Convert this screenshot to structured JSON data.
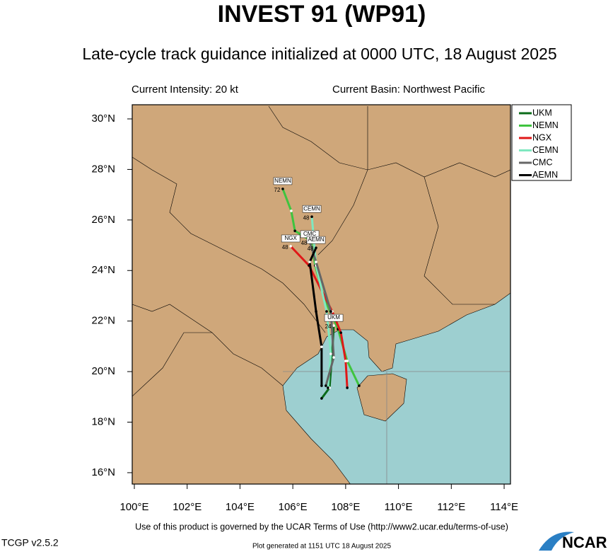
{
  "chart_data": {
    "type": "track",
    "title": "INVEST 91 (WP91)",
    "subtitle": "Late-cycle track guidance initialized at 0000 UTC, 18 August 2025",
    "intensity": "Current Intensity: 20 kt",
    "basin": "Current Basin: Northwest Pacific",
    "xlim": [
      99.92,
      114.24
    ],
    "ylim": [
      15.55,
      30.56
    ],
    "xticks": [
      {
        "value": 100,
        "label": "100°E"
      },
      {
        "value": 102,
        "label": "102°E"
      },
      {
        "value": 104,
        "label": "104°E"
      },
      {
        "value": 106,
        "label": "106°E"
      },
      {
        "value": 108,
        "label": "108°E"
      },
      {
        "value": 110,
        "label": "110°E"
      },
      {
        "value": 112,
        "label": "112°E"
      },
      {
        "value": 114,
        "label": "114°E"
      }
    ],
    "yticks": [
      {
        "value": 16,
        "label": "16°N"
      },
      {
        "value": 18,
        "label": "18°N"
      },
      {
        "value": 20,
        "label": "20°N"
      },
      {
        "value": 22,
        "label": "22°N"
      },
      {
        "value": 24,
        "label": "24°N"
      },
      {
        "value": 26,
        "label": "26°N"
      },
      {
        "value": 28,
        "label": "28°N"
      },
      {
        "value": 30,
        "label": "30°N"
      }
    ],
    "series": [
      {
        "name": "UKM",
        "color": "#0b6b1a",
        "end_label": 24,
        "x": [
          107.09,
          107.39,
          107.49,
          107.55
        ],
        "values": [
          18.94,
          19.36,
          20.7,
          21.82
        ]
      },
      {
        "name": "NEMN",
        "color": "#3fc43f",
        "end_label": 72,
        "x": [
          108.51,
          108.06,
          107.71,
          107.17,
          106.85,
          106.69,
          106.08,
          105.94,
          105.62
        ],
        "values": [
          19.44,
          20.42,
          21.68,
          22.94,
          24.2,
          25.18,
          25.57,
          26.36,
          27.23
        ]
      },
      {
        "name": "NGX",
        "color": "#e01818",
        "end_label": 48,
        "x": [
          108.06,
          108.0,
          107.82,
          107.49,
          106.61,
          105.92
        ],
        "values": [
          19.36,
          20.42,
          21.54,
          22.38,
          24.2,
          24.96
        ]
      },
      {
        "name": "CEMN",
        "color": "#7fe8c0",
        "end_label": 48,
        "x": [
          107.33,
          107.44,
          107.28,
          106.88,
          106.72
        ],
        "values": [
          19.36,
          20.7,
          22.38,
          24.2,
          26.13
        ]
      },
      {
        "name": "CMC",
        "color": "#666666",
        "end_label": 48,
        "x": [
          107.25,
          107.55,
          107.44,
          106.88,
          106.64
        ],
        "values": [
          19.44,
          20.56,
          22.38,
          24.34,
          25.13
        ]
      },
      {
        "name": "AEMN",
        "color": "#000000",
        "end_label": 48,
        "x": [
          107.09,
          107.09,
          106.88,
          106.64,
          106.88
        ],
        "values": [
          19.44,
          20.98,
          22.38,
          24.34,
          24.9
        ]
      }
    ],
    "terms": "Use of this product is governed by the UCAR Terms of Use (http://www2.ucar.edu/terms-of-use)",
    "version": "TCGP v2.5.2",
    "generated": "Plot generated at 1151 UTC   18 August 2025",
    "logo": "NCAR"
  }
}
